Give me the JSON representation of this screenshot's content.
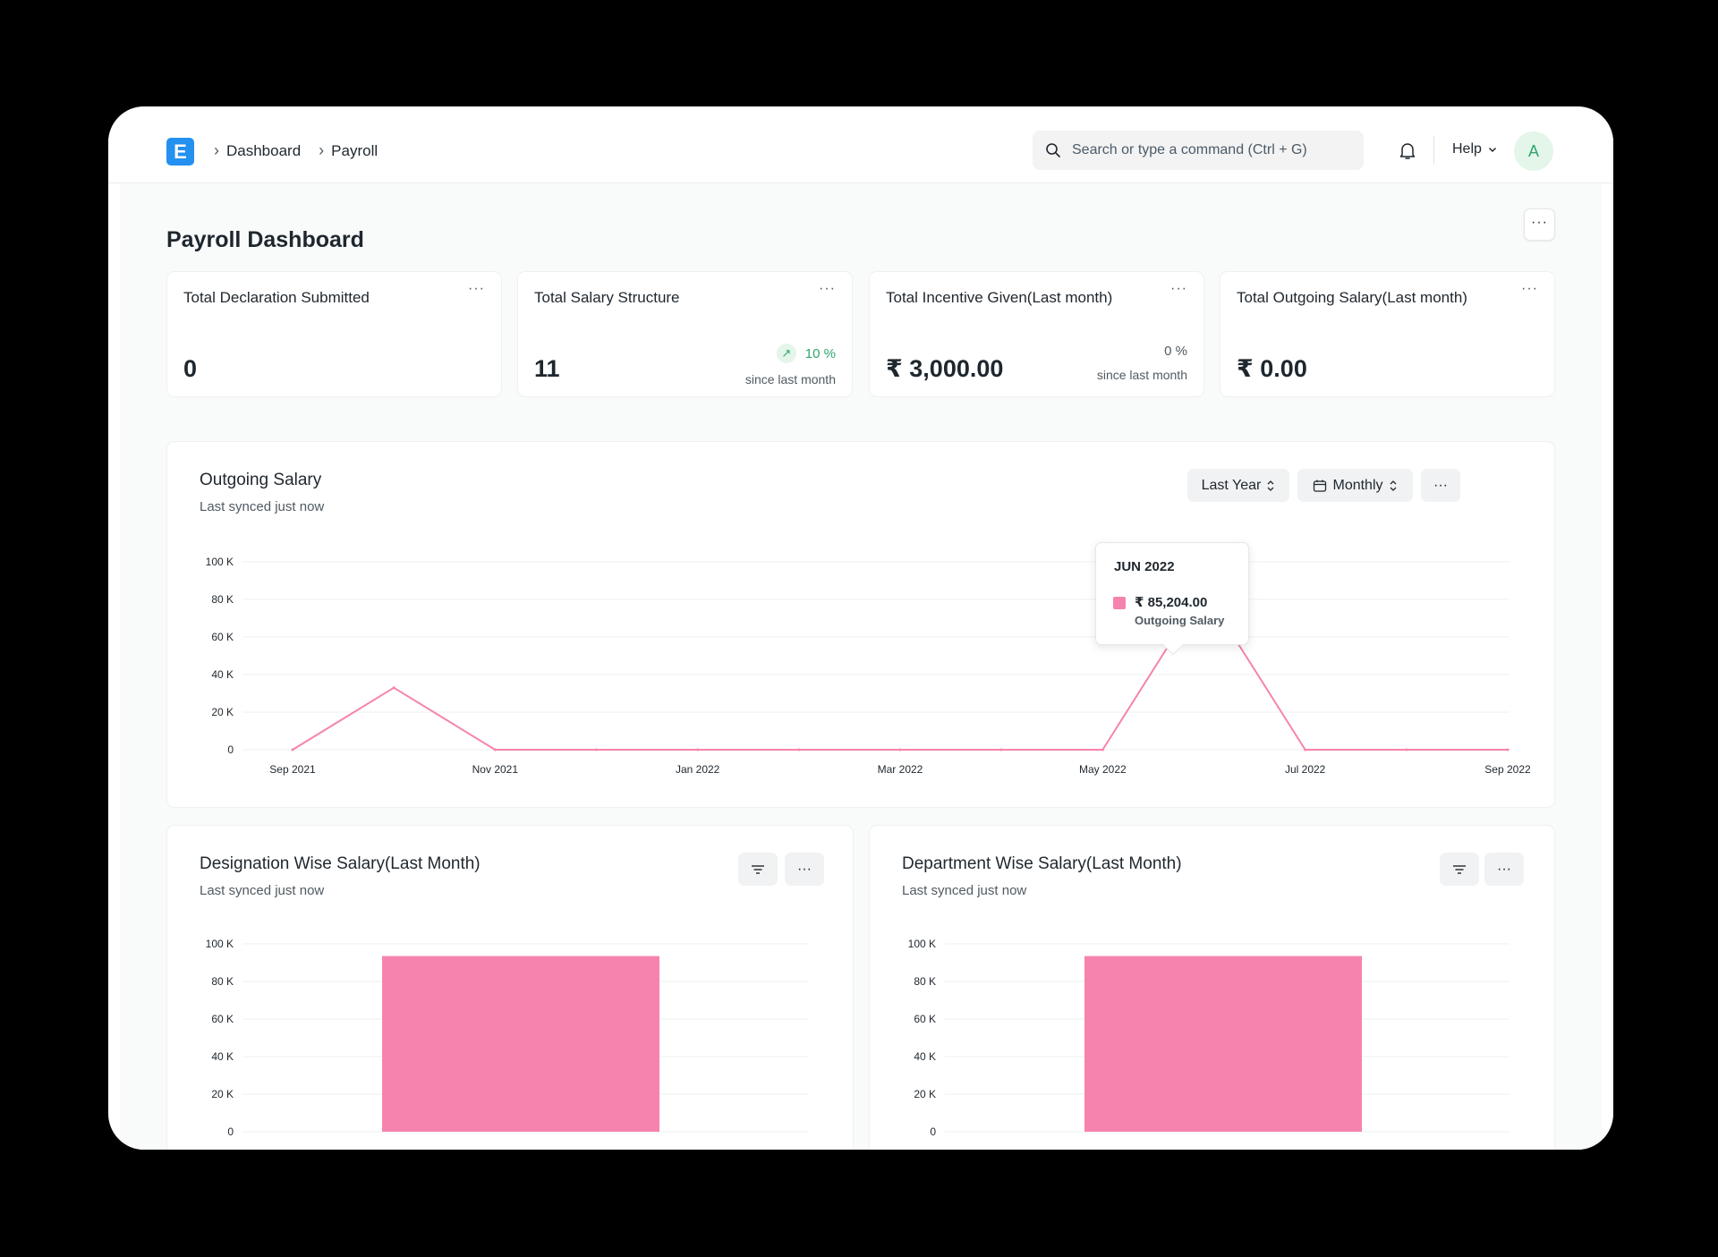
{
  "breadcrumb": {
    "items": [
      "Dashboard",
      "Payroll"
    ]
  },
  "search": {
    "placeholder": "Search or type a command (Ctrl + G)"
  },
  "header": {
    "help_label": "Help",
    "avatar_initial": "A",
    "logo_letter": "E"
  },
  "page": {
    "title": "Payroll Dashboard",
    "menu_label": "···"
  },
  "number_cards": [
    {
      "title": "Total Declaration Submitted",
      "value": "0",
      "menu": "···"
    },
    {
      "title": "Total Salary Structure",
      "value": "11",
      "menu": "···",
      "change": "10 %",
      "change_note": "since last month",
      "trend": "up"
    },
    {
      "title": "Total Incentive Given(Last month)",
      "value": "₹ 3,000.00",
      "menu": "···",
      "change": "0 %",
      "change_note": "since last month",
      "trend": "flat"
    },
    {
      "title": "Total Outgoing Salary(Last month)",
      "value": "₹ 0.00",
      "menu": "···"
    }
  ],
  "outgoing_chart": {
    "title": "Outgoing Salary",
    "subtitle": "Last synced just now",
    "filter_range": "Last Year",
    "filter_interval": "Monthly",
    "menu": "···",
    "tooltip": {
      "title": "JUN 2022",
      "value": "₹ 85,204.00",
      "series": "Outgoing Salary"
    }
  },
  "designation_chart": {
    "title": "Designation Wise Salary(Last Month)",
    "subtitle": "Last synced just now",
    "menu": "···"
  },
  "department_chart": {
    "title": "Department Wise Salary(Last Month)",
    "subtitle": "Last synced just now",
    "menu": "···"
  },
  "chart_data": [
    {
      "type": "line",
      "title": "Outgoing Salary",
      "x": [
        "Sep 2021",
        "Oct 2021",
        "Nov 2021",
        "Dec 2021",
        "Jan 2022",
        "Feb 2022",
        "Mar 2022",
        "Apr 2022",
        "May 2022",
        "Jun 2022",
        "Jul 2022",
        "Aug 2022",
        "Sep 2022"
      ],
      "x_tick_labels": [
        "Sep 2021",
        "Nov 2021",
        "Jan 2022",
        "Mar 2022",
        "May 2022",
        "Jul 2022",
        "Sep 2022"
      ],
      "series": [
        {
          "name": "Outgoing Salary",
          "values": [
            0,
            33000,
            0,
            0,
            0,
            0,
            0,
            0,
            0,
            85204,
            0,
            0,
            0
          ],
          "color": "#f683ae"
        }
      ],
      "y_ticks": [
        "0",
        "20 K",
        "40 K",
        "60 K",
        "80 K",
        "100 K"
      ],
      "ylim": [
        0,
        100000
      ],
      "grid": true
    },
    {
      "type": "bar",
      "title": "Designation Wise Salary(Last Month)",
      "categories": [
        ""
      ],
      "values": [
        93500
      ],
      "color": "#f683ae",
      "y_ticks": [
        "0",
        "20 K",
        "40 K",
        "60 K",
        "80 K",
        "100 K"
      ],
      "ylim": [
        0,
        100000
      ]
    },
    {
      "type": "bar",
      "title": "Department Wise Salary(Last Month)",
      "categories": [
        ""
      ],
      "values": [
        93500
      ],
      "color": "#f683ae",
      "y_ticks": [
        "0",
        "20 K",
        "40 K",
        "60 K",
        "80 K",
        "100 K"
      ],
      "ylim": [
        0,
        100000
      ]
    }
  ]
}
